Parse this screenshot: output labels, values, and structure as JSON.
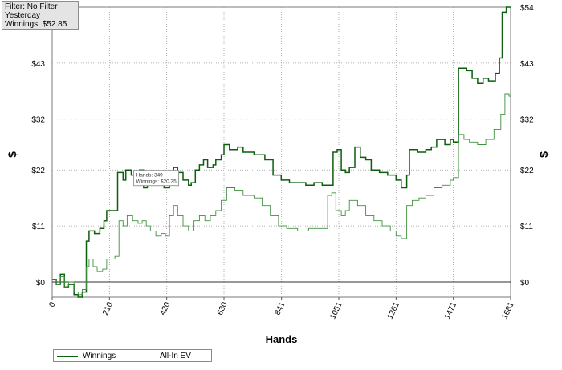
{
  "info_box": {
    "filter": "Filter: No Filter",
    "period": "Yesterday",
    "winnings": "Winnings: $52.85"
  },
  "legend": {
    "winnings": "Winnings",
    "allin_ev": "All-In EV"
  },
  "colors": {
    "winnings": "#0b5e0b",
    "allin_ev": "#3f8f3f",
    "grid": "#9a9a9a"
  },
  "chart_data": {
    "type": "line",
    "xlabel": "Hands",
    "ylabel": "$",
    "xlim": [
      0,
      1681
    ],
    "ylim": [
      -3,
      54
    ],
    "x_ticks": [
      0,
      210,
      420,
      630,
      841,
      1051,
      1261,
      1471,
      1681
    ],
    "y_ticks": [
      0,
      11,
      22,
      32,
      43,
      54
    ],
    "y_tick_labels": [
      "$0",
      "$11",
      "$22",
      "$32",
      "$43",
      "$54"
    ],
    "grid": true,
    "legend_position": "bottom-left",
    "tooltip": {
      "hands_text": "Hands: 349",
      "winnings_text": "Winnings: $20.35",
      "x": 349,
      "y": 20.35
    },
    "series": [
      {
        "name": "Winnings",
        "points": [
          [
            0,
            0.5
          ],
          [
            15,
            -0.5
          ],
          [
            30,
            1.5
          ],
          [
            45,
            -1
          ],
          [
            60,
            -0.5
          ],
          [
            80,
            -2.5
          ],
          [
            95,
            -3
          ],
          [
            110,
            -2
          ],
          [
            125,
            8
          ],
          [
            135,
            10
          ],
          [
            155,
            9.5
          ],
          [
            175,
            10.5
          ],
          [
            190,
            12
          ],
          [
            200,
            14
          ],
          [
            230,
            14
          ],
          [
            240,
            21.5
          ],
          [
            260,
            20
          ],
          [
            270,
            22
          ],
          [
            290,
            21
          ],
          [
            310,
            21.5
          ],
          [
            320,
            22
          ],
          [
            335,
            18.5
          ],
          [
            349,
            20.35
          ],
          [
            360,
            19.5
          ],
          [
            380,
            20
          ],
          [
            400,
            20
          ],
          [
            410,
            18.5
          ],
          [
            430,
            19
          ],
          [
            445,
            22.5
          ],
          [
            460,
            21.5
          ],
          [
            480,
            20
          ],
          [
            500,
            19
          ],
          [
            510,
            19.5
          ],
          [
            525,
            22
          ],
          [
            540,
            23
          ],
          [
            555,
            24
          ],
          [
            570,
            22.5
          ],
          [
            590,
            23
          ],
          [
            600,
            24
          ],
          [
            620,
            25
          ],
          [
            630,
            27
          ],
          [
            650,
            26
          ],
          [
            680,
            26.5
          ],
          [
            700,
            25.5
          ],
          [
            740,
            25
          ],
          [
            780,
            24
          ],
          [
            810,
            21
          ],
          [
            840,
            20
          ],
          [
            870,
            19.5
          ],
          [
            900,
            19.5
          ],
          [
            930,
            19
          ],
          [
            960,
            19.5
          ],
          [
            990,
            19
          ],
          [
            1030,
            25.5
          ],
          [
            1045,
            26
          ],
          [
            1060,
            22
          ],
          [
            1075,
            21.5
          ],
          [
            1090,
            22.5
          ],
          [
            1110,
            26.5
          ],
          [
            1130,
            24.5
          ],
          [
            1150,
            24
          ],
          [
            1170,
            22
          ],
          [
            1200,
            21.5
          ],
          [
            1230,
            21
          ],
          [
            1261,
            20
          ],
          [
            1280,
            18.5
          ],
          [
            1300,
            21
          ],
          [
            1310,
            26
          ],
          [
            1340,
            25.5
          ],
          [
            1370,
            26
          ],
          [
            1390,
            26.5
          ],
          [
            1410,
            28
          ],
          [
            1440,
            27
          ],
          [
            1460,
            28
          ],
          [
            1471,
            27.5
          ],
          [
            1490,
            42
          ],
          [
            1520,
            41.5
          ],
          [
            1540,
            40
          ],
          [
            1560,
            39
          ],
          [
            1580,
            40
          ],
          [
            1600,
            39.5
          ],
          [
            1625,
            41
          ],
          [
            1640,
            44
          ],
          [
            1650,
            53
          ],
          [
            1665,
            54
          ],
          [
            1681,
            54
          ]
        ]
      },
      {
        "name": "All-In EV",
        "points": [
          [
            0,
            0.5
          ],
          [
            15,
            -0.5
          ],
          [
            30,
            1
          ],
          [
            45,
            -1
          ],
          [
            60,
            0
          ],
          [
            80,
            -2
          ],
          [
            95,
            -2.5
          ],
          [
            110,
            -1.5
          ],
          [
            125,
            3
          ],
          [
            135,
            4.5
          ],
          [
            150,
            3
          ],
          [
            165,
            2
          ],
          [
            185,
            2.5
          ],
          [
            200,
            4.5
          ],
          [
            230,
            5
          ],
          [
            245,
            12
          ],
          [
            260,
            11
          ],
          [
            275,
            13
          ],
          [
            295,
            12
          ],
          [
            315,
            11.5
          ],
          [
            330,
            12
          ],
          [
            345,
            11
          ],
          [
            360,
            10
          ],
          [
            380,
            9
          ],
          [
            400,
            9.5
          ],
          [
            415,
            9
          ],
          [
            430,
            13
          ],
          [
            445,
            15
          ],
          [
            460,
            13
          ],
          [
            480,
            11
          ],
          [
            500,
            10
          ],
          [
            520,
            12
          ],
          [
            540,
            13
          ],
          [
            560,
            12
          ],
          [
            580,
            13
          ],
          [
            600,
            14
          ],
          [
            620,
            16
          ],
          [
            640,
            18.5
          ],
          [
            670,
            18
          ],
          [
            700,
            17
          ],
          [
            740,
            16.5
          ],
          [
            770,
            15
          ],
          [
            800,
            13
          ],
          [
            830,
            11
          ],
          [
            860,
            10.5
          ],
          [
            900,
            10
          ],
          [
            940,
            10.5
          ],
          [
            990,
            10.5
          ],
          [
            1010,
            17
          ],
          [
            1025,
            17.5
          ],
          [
            1040,
            14
          ],
          [
            1060,
            13
          ],
          [
            1075,
            14
          ],
          [
            1090,
            16
          ],
          [
            1120,
            15
          ],
          [
            1150,
            13
          ],
          [
            1180,
            12
          ],
          [
            1210,
            11
          ],
          [
            1240,
            10
          ],
          [
            1261,
            9
          ],
          [
            1280,
            8.5
          ],
          [
            1300,
            15
          ],
          [
            1320,
            16
          ],
          [
            1345,
            16.5
          ],
          [
            1370,
            17
          ],
          [
            1400,
            18.5
          ],
          [
            1430,
            19
          ],
          [
            1460,
            20
          ],
          [
            1471,
            20.5
          ],
          [
            1490,
            29
          ],
          [
            1510,
            28
          ],
          [
            1530,
            27.5
          ],
          [
            1560,
            27
          ],
          [
            1590,
            28
          ],
          [
            1620,
            30
          ],
          [
            1645,
            33
          ],
          [
            1660,
            37
          ],
          [
            1675,
            36.5
          ],
          [
            1681,
            37
          ]
        ]
      }
    ]
  }
}
